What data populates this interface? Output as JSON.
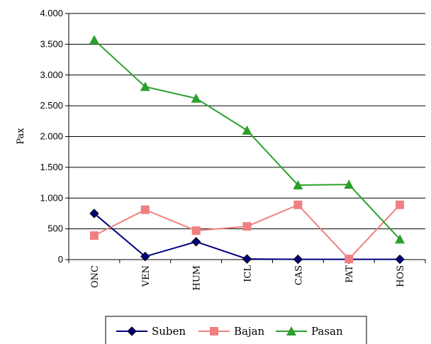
{
  "chart_data": {
    "type": "line",
    "title": "",
    "xlabel": "",
    "ylabel": "Pax",
    "categories": [
      "ONC",
      "VEN",
      "HUM",
      "ICL",
      "CAS",
      "PAT",
      "HOS"
    ],
    "ylim": [
      0,
      4000
    ],
    "yticks": [
      0,
      500,
      1000,
      1500,
      2000,
      2500,
      3000,
      3500,
      4000
    ],
    "ytick_labels": [
      "0",
      "500",
      "1.000",
      "1.500",
      "2.000",
      "2.500",
      "3.000",
      "3.500",
      "4.000"
    ],
    "grid": "horizontal",
    "legend_position": "bottom",
    "series": [
      {
        "name": "Suben",
        "color": "#00007f",
        "marker": "diamond",
        "values": [
          750,
          50,
          290,
          10,
          5,
          5,
          5
        ]
      },
      {
        "name": "Bajan",
        "color": "#f08080",
        "marker": "square",
        "values": [
          390,
          810,
          470,
          540,
          890,
          10,
          890
        ]
      },
      {
        "name": "Pasan",
        "color": "#2ca02c",
        "marker": "triangle",
        "values": [
          3570,
          2810,
          2620,
          2100,
          1210,
          1220,
          330
        ]
      }
    ]
  }
}
